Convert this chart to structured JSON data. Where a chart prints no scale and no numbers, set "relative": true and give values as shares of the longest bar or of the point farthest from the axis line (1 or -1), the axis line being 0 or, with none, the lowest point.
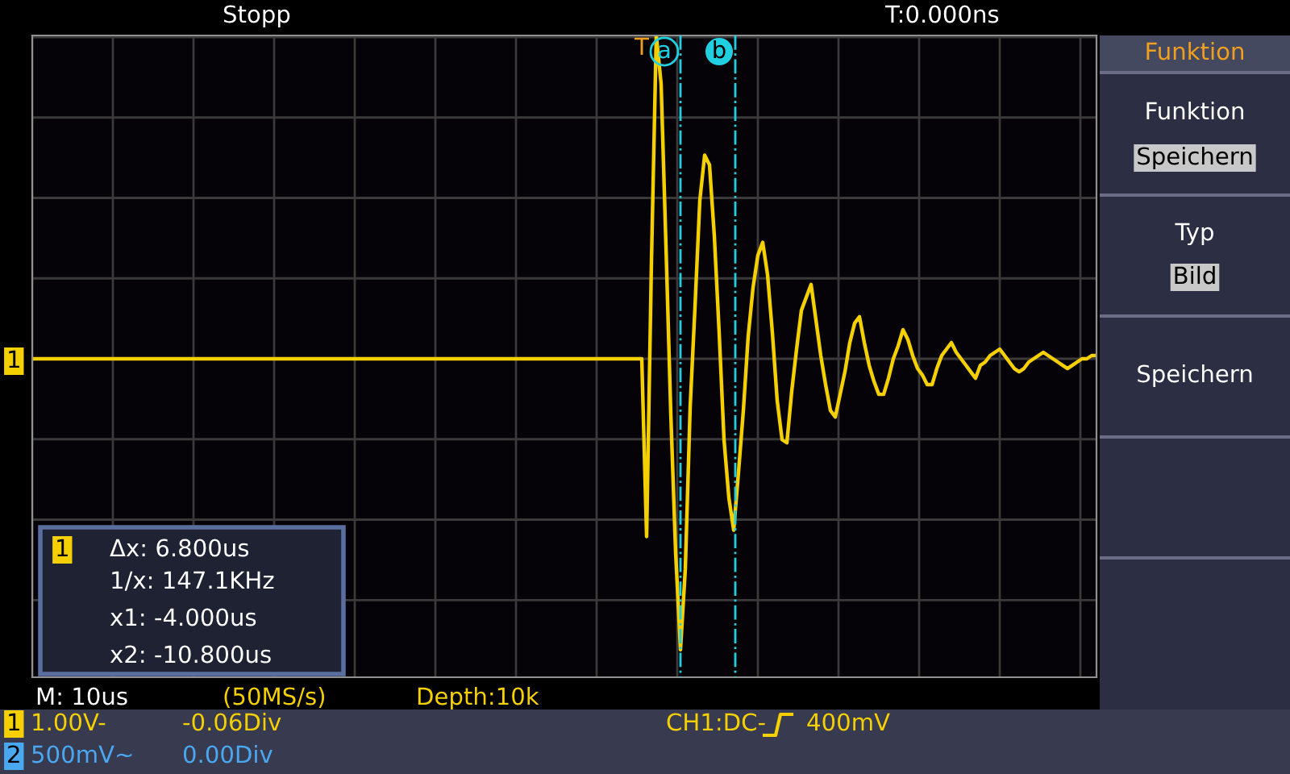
{
  "chart_data": {
    "type": "line",
    "relative": true,
    "grid": true,
    "marker": "none",
    "line_style": "solid",
    "categories": [
      null,
      null,
      null,
      null,
      null,
      null,
      null,
      null,
      null,
      null,
      null,
      null,
      null,
      null,
      null,
      null,
      null,
      null,
      null,
      null,
      null,
      null,
      null,
      null,
      null,
      null,
      null,
      null,
      null,
      null,
      null,
      null,
      null,
      null,
      null,
      null,
      null,
      null,
      null,
      null,
      null,
      null,
      null,
      null,
      null,
      null,
      null,
      null,
      null,
      null,
      null,
      null,
      null,
      null,
      null,
      null,
      null,
      null,
      null,
      null,
      null,
      null,
      null,
      null,
      null,
      null,
      null,
      null,
      null,
      null,
      null,
      null,
      null,
      null,
      null,
      null,
      null,
      null,
      null,
      null,
      null,
      null,
      null,
      null,
      null,
      null,
      null,
      null,
      null,
      null,
      null,
      null,
      null,
      null,
      null,
      null,
      null,
      null,
      null,
      null,
      null,
      null,
      null,
      null,
      null,
      null,
      null,
      null,
      null,
      null,
      null,
      null,
      null,
      null,
      null,
      null,
      null,
      null,
      null,
      null,
      null,
      null,
      null,
      null,
      null,
      null,
      null,
      null,
      null,
      null,
      null,
      null,
      null,
      null,
      null,
      null,
      null,
      null,
      null,
      null,
      null,
      null,
      null,
      null,
      null,
      null,
      null,
      null,
      null,
      null,
      null,
      null,
      null,
      null,
      null,
      null,
      null,
      null,
      null,
      null,
      null,
      null,
      null,
      null,
      null,
      null,
      null,
      null,
      null,
      null,
      null,
      null,
      null,
      null,
      null,
      null,
      null,
      null,
      null,
      null,
      null,
      null,
      null,
      null,
      null,
      null,
      null,
      null,
      null,
      null,
      null,
      null,
      null,
      null,
      null,
      null,
      null,
      null,
      null,
      null,
      null,
      null,
      null,
      null,
      null,
      null,
      null,
      null,
      null,
      null,
      null,
      null,
      null,
      null,
      null,
      null,
      null,
      null,
      null,
      null,
      null
    ],
    "series": [
      {
        "color": "#f5d000",
        "values": [
          0,
          0,
          0,
          0,
          0,
          0,
          0,
          0,
          0,
          0,
          0,
          0,
          0,
          0,
          0,
          0,
          0,
          0,
          0,
          0,
          0,
          0,
          0,
          0,
          0,
          0,
          0,
          0,
          0,
          0,
          0,
          0,
          0,
          0,
          0,
          0,
          0,
          0,
          0,
          0,
          0,
          0,
          0,
          0,
          0,
          0,
          0,
          0,
          0,
          0,
          0,
          0,
          0,
          0,
          0,
          0,
          0,
          0,
          0,
          0,
          0,
          0,
          0,
          0,
          0,
          0,
          0,
          0,
          0,
          0,
          0,
          0,
          0,
          0,
          0,
          0,
          0,
          0,
          0,
          0,
          0,
          0,
          0,
          0,
          0,
          0,
          0,
          0,
          0,
          0,
          0,
          0,
          0,
          0,
          0,
          0,
          0,
          0,
          0,
          0,
          0,
          0,
          0,
          0,
          0,
          0,
          0,
          0,
          0,
          0,
          0,
          0,
          0,
          0,
          0,
          0,
          0,
          0,
          0,
          0,
          0,
          0,
          0,
          0,
          0,
          0,
          0,
          -0.55,
          0.3,
          1.0,
          0.85,
          0.35,
          -0.17,
          -0.6,
          -0.9,
          -0.65,
          -0.15,
          0.16,
          0.49,
          0.63,
          0.6,
          0.38,
          0.08,
          -0.25,
          -0.43,
          -0.53,
          -0.35,
          -0.16,
          0.07,
          0.22,
          0.32,
          0.36,
          0.26,
          0.08,
          -0.13,
          -0.25,
          -0.26,
          -0.1,
          0.03,
          0.15,
          0.19,
          0.23,
          0.12,
          0.01,
          -0.08,
          -0.16,
          -0.18,
          -0.11,
          -0.04,
          0.05,
          0.11,
          0.13,
          0.05,
          -0.02,
          -0.07,
          -0.11,
          -0.11,
          -0.06,
          0.0,
          0.04,
          0.09,
          0.06,
          0.01,
          -0.03,
          -0.05,
          -0.08,
          -0.08,
          -0.03,
          0.01,
          0.03,
          0.05,
          0.02,
          0.0,
          -0.02,
          -0.04,
          -0.06,
          -0.02,
          -0.01,
          0.01,
          0.02,
          0.03,
          0.01,
          -0.01,
          -0.03,
          -0.04,
          -0.03,
          -0.01,
          0.0,
          0.01,
          0.02,
          0.01,
          0.0,
          -0.01,
          -0.02,
          -0.03,
          -0.02,
          -0.01,
          0.0,
          0.0,
          0.01,
          0.01
        ]
      }
    ],
    "annotations": [
      "a",
      "b",
      "Stopp",
      "T:0.000ns",
      "Funktion",
      "Funktion",
      "Speichern",
      "Typ",
      "Bild",
      "Speichern",
      "M: 10us",
      "(50MS/s)",
      "Depth:10k",
      "1",
      "1.00V-",
      "-0.06Div",
      "CH1:DC-",
      "400mV",
      "2",
      "500mV~",
      "0.00Div",
      "1",
      "Δx: 6.800us",
      "1/x: 147.1KHz",
      "x1: -4.000us",
      "x2: -10.800us",
      "1",
      "T"
    ]
  }
}
